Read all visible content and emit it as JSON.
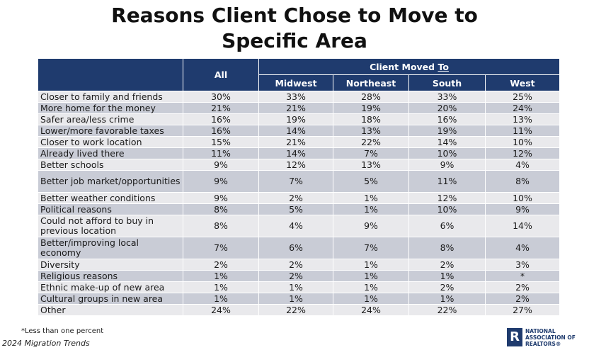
{
  "title_line1": "Reasons Client Chose to Move to",
  "title_line2": "Specific Area",
  "chart_data": {
    "type": "table",
    "header": {
      "all": "All",
      "group": "Client Moved",
      "group_to": "To",
      "regions": [
        "Midwest",
        "Northeast",
        "South",
        "West"
      ]
    },
    "rows": [
      {
        "label": "Closer to family and friends",
        "values": [
          "30%",
          "33%",
          "28%",
          "33%",
          "25%"
        ]
      },
      {
        "label": "More home for the money",
        "values": [
          "21%",
          "21%",
          "19%",
          "20%",
          "24%"
        ]
      },
      {
        "label": "Safer area/less crime",
        "values": [
          "16%",
          "19%",
          "18%",
          "16%",
          "13%"
        ]
      },
      {
        "label": "Lower/more favorable taxes",
        "values": [
          "16%",
          "14%",
          "13%",
          "19%",
          "11%"
        ]
      },
      {
        "label": "Closer to work location",
        "values": [
          "15%",
          "21%",
          "22%",
          "14%",
          "10%"
        ]
      },
      {
        "label": "Already lived there",
        "values": [
          "11%",
          "14%",
          "7%",
          "10%",
          "12%"
        ]
      },
      {
        "label": "Better schools",
        "values": [
          "9%",
          "12%",
          "13%",
          "9%",
          "4%"
        ]
      },
      {
        "label": "Better job market/opportunities",
        "values": [
          "9%",
          "7%",
          "5%",
          "11%",
          "8%"
        ]
      },
      {
        "label": "Better weather conditions",
        "values": [
          "9%",
          "2%",
          "1%",
          "12%",
          "10%"
        ]
      },
      {
        "label": "Political reasons",
        "values": [
          "8%",
          "5%",
          "1%",
          "10%",
          "9%"
        ]
      },
      {
        "label": "Could not afford to buy in previous location",
        "values": [
          "8%",
          "4%",
          "9%",
          "6%",
          "14%"
        ]
      },
      {
        "label": "Better/improving local economy",
        "values": [
          "7%",
          "6%",
          "7%",
          "8%",
          "4%"
        ]
      },
      {
        "label": "Diversity",
        "values": [
          "2%",
          "2%",
          "1%",
          "2%",
          "3%"
        ]
      },
      {
        "label": "Religious reasons",
        "values": [
          "1%",
          "2%",
          "1%",
          "1%",
          "*"
        ]
      },
      {
        "label": "Ethnic make-up of new area",
        "values": [
          "1%",
          "1%",
          "1%",
          "2%",
          "2%"
        ]
      },
      {
        "label": "Cultural groups in new area",
        "values": [
          "1%",
          "1%",
          "1%",
          "1%",
          "2%"
        ]
      },
      {
        "label": "Other",
        "values": [
          "24%",
          "22%",
          "24%",
          "22%",
          "27%"
        ]
      }
    ]
  },
  "footnote": "*Less than one percent",
  "source": "2024 Migration Trends",
  "logo": {
    "mark": "R",
    "line1": "NATIONAL",
    "line2": "ASSOCIATION OF",
    "line3": "REALTORS®"
  },
  "colors": {
    "header_bg": "#1f3b6e",
    "row_light": "#e9e9ec",
    "row_dark": "#c9ccd6"
  }
}
